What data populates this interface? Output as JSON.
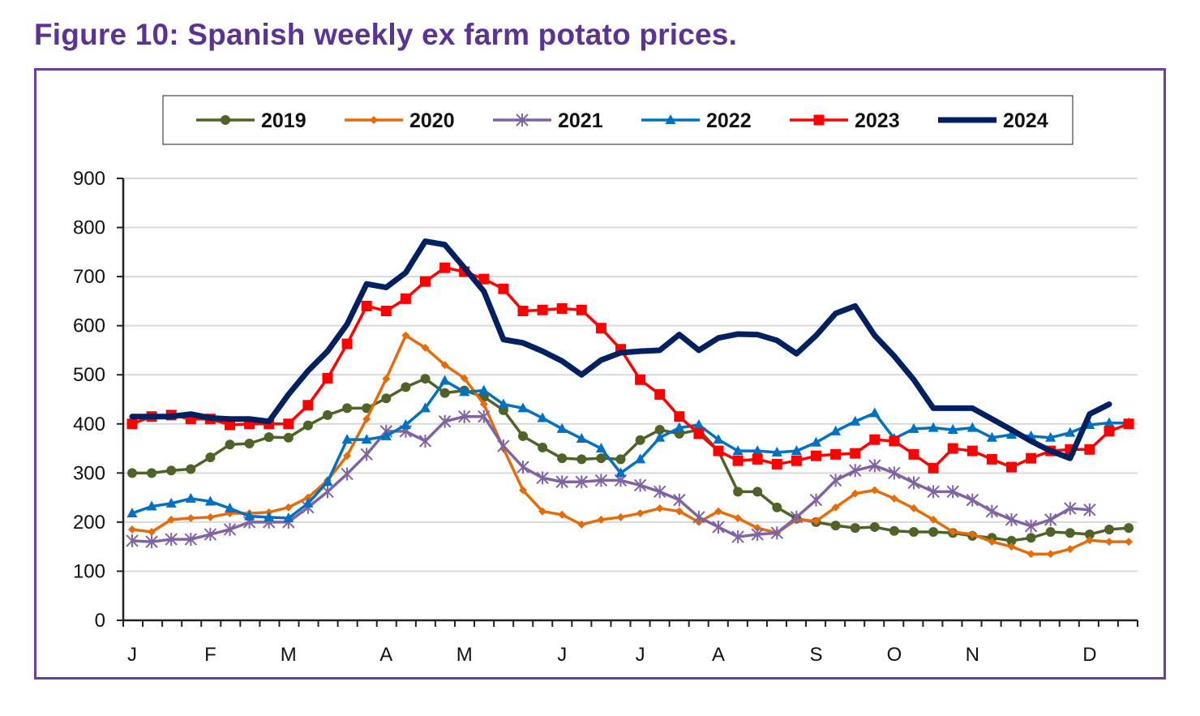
{
  "title": "Figure 10: Spanish weekly ex farm potato prices.",
  "chart_data": {
    "type": "line",
    "title": "Figure 10: Spanish weekly ex farm potato prices.",
    "xlabel": "",
    "ylabel": "",
    "ylim": [
      0,
      900
    ],
    "yticks": [
      0,
      100,
      200,
      300,
      400,
      500,
      600,
      700,
      800,
      900
    ],
    "grid": true,
    "legend_position": "top",
    "x_unit": "week",
    "weeks": 52,
    "month_ticks": [
      {
        "label": "J",
        "week": 1
      },
      {
        "label": "F",
        "week": 5
      },
      {
        "label": "M",
        "week": 9
      },
      {
        "label": "A",
        "week": 14
      },
      {
        "label": "M",
        "week": 18
      },
      {
        "label": "J",
        "week": 23
      },
      {
        "label": "J",
        "week": 27
      },
      {
        "label": "A",
        "week": 31
      },
      {
        "label": "S",
        "week": 36
      },
      {
        "label": "O",
        "week": 40
      },
      {
        "label": "N",
        "week": 44
      },
      {
        "label": "D",
        "week": 50
      }
    ],
    "series": [
      {
        "name": "2019",
        "color": "#4f6228",
        "marker": "circle",
        "values": [
          300,
          300,
          305,
          308,
          332,
          358,
          360,
          373,
          372,
          397,
          418,
          432,
          432,
          452,
          475,
          492,
          463,
          468,
          455,
          428,
          375,
          352,
          330,
          328,
          330,
          328,
          367,
          388,
          380,
          388,
          345,
          262,
          262,
          230,
          207,
          200,
          193,
          188,
          190,
          182,
          180,
          180,
          178,
          172,
          168,
          162,
          168,
          180,
          178,
          175,
          185,
          188
        ]
      },
      {
        "name": "2020",
        "color": "#e46c0a",
        "marker": "diamond",
        "values": [
          185,
          180,
          205,
          208,
          210,
          218,
          218,
          220,
          230,
          250,
          285,
          335,
          410,
          492,
          580,
          555,
          520,
          493,
          440,
          350,
          265,
          222,
          215,
          195,
          205,
          210,
          218,
          228,
          222,
          200,
          222,
          208,
          188,
          178,
          205,
          202,
          230,
          258,
          265,
          248,
          228,
          205,
          180,
          175,
          160,
          150,
          135,
          135,
          145,
          163,
          160,
          160
        ]
      },
      {
        "name": "2021",
        "color": "#8064a2",
        "marker": "star",
        "values": [
          162,
          160,
          165,
          165,
          175,
          185,
          200,
          200,
          200,
          230,
          262,
          298,
          338,
          385,
          385,
          365,
          405,
          415,
          415,
          355,
          312,
          290,
          282,
          282,
          285,
          285,
          275,
          262,
          245,
          210,
          190,
          170,
          175,
          178,
          210,
          245,
          285,
          305,
          315,
          300,
          280,
          262,
          262,
          245,
          222,
          205,
          192,
          205,
          228,
          225
        ]
      },
      {
        "name": "2022",
        "color": "#0070c0",
        "marker": "triangle",
        "values": [
          218,
          232,
          238,
          248,
          242,
          228,
          212,
          210,
          208,
          238,
          282,
          368,
          368,
          375,
          398,
          432,
          488,
          465,
          468,
          440,
          432,
          412,
          390,
          370,
          350,
          300,
          328,
          372,
          392,
          398,
          368,
          345,
          345,
          342,
          345,
          362,
          385,
          405,
          422,
          370,
          390,
          392,
          388,
          392,
          372,
          378,
          375,
          372,
          382,
          398,
          402,
          402
        ]
      },
      {
        "name": "2023",
        "color": "#ff0000",
        "marker": "square",
        "values": [
          400,
          415,
          418,
          410,
          410,
          398,
          400,
          400,
          400,
          438,
          493,
          563,
          640,
          630,
          655,
          690,
          718,
          710,
          695,
          675,
          630,
          632,
          635,
          632,
          595,
          552,
          490,
          460,
          415,
          380,
          345,
          325,
          328,
          318,
          325,
          335,
          338,
          340,
          368,
          365,
          338,
          310,
          350,
          345,
          328,
          312,
          330,
          345,
          348,
          348,
          385,
          400
        ]
      },
      {
        "name": "2024",
        "color": "#002060",
        "marker": "none",
        "values": [
          415,
          415,
          415,
          420,
          412,
          410,
          410,
          405,
          460,
          508,
          548,
          603,
          685,
          678,
          708,
          772,
          765,
          718,
          670,
          572,
          565,
          548,
          528,
          500,
          530,
          545,
          548,
          550,
          582,
          550,
          575,
          583,
          582,
          570,
          543,
          580,
          625,
          640,
          580,
          538,
          490,
          432,
          432,
          432,
          410,
          388,
          365,
          345,
          330,
          420,
          440
        ]
      }
    ]
  }
}
